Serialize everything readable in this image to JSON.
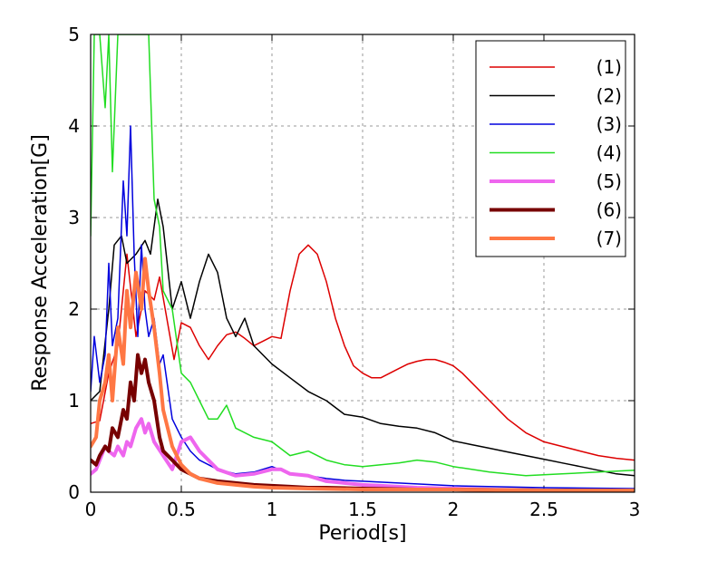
{
  "chart_data": {
    "type": "line",
    "title": "",
    "xlabel": "Period[s]",
    "ylabel": "Response Acceleration[G]",
    "xlim": [
      0,
      3
    ],
    "ylim": [
      0,
      5
    ],
    "grid": true,
    "legend_position": "top-right",
    "x_ticks": [
      0,
      0.5,
      1,
      1.5,
      2,
      2.5,
      3
    ],
    "x_tick_labels": [
      "0",
      "0.5",
      "1",
      "1.5",
      "2",
      "2.5",
      "3"
    ],
    "y_ticks": [
      0,
      1,
      2,
      3,
      4,
      5
    ],
    "y_tick_labels": [
      "0",
      "1",
      "2",
      "3",
      "4",
      "5"
    ],
    "series": [
      {
        "name": "(1)",
        "color": "#dd0000",
        "width": 1.5,
        "x": [
          0,
          0.05,
          0.1,
          0.15,
          0.2,
          0.25,
          0.3,
          0.35,
          0.38,
          0.42,
          0.46,
          0.5,
          0.55,
          0.6,
          0.65,
          0.7,
          0.75,
          0.8,
          0.85,
          0.9,
          0.95,
          1.0,
          1.05,
          1.1,
          1.15,
          1.2,
          1.25,
          1.3,
          1.35,
          1.4,
          1.45,
          1.5,
          1.55,
          1.6,
          1.65,
          1.7,
          1.75,
          1.8,
          1.85,
          1.9,
          1.95,
          2.0,
          2.05,
          2.1,
          2.2,
          2.3,
          2.4,
          2.5,
          2.6,
          2.7,
          2.8,
          2.9,
          3.0
        ],
        "y": [
          0.75,
          0.78,
          1.3,
          1.6,
          2.6,
          1.7,
          2.2,
          2.1,
          2.35,
          1.9,
          1.45,
          1.85,
          1.8,
          1.6,
          1.45,
          1.6,
          1.72,
          1.75,
          1.68,
          1.6,
          1.65,
          1.7,
          1.68,
          2.2,
          2.6,
          2.7,
          2.6,
          2.3,
          1.9,
          1.6,
          1.38,
          1.3,
          1.25,
          1.25,
          1.3,
          1.35,
          1.4,
          1.43,
          1.45,
          1.45,
          1.42,
          1.38,
          1.3,
          1.2,
          1.0,
          0.8,
          0.65,
          0.55,
          0.5,
          0.45,
          0.4,
          0.37,
          0.35
        ]
      },
      {
        "name": "(2)",
        "color": "#000000",
        "width": 1.5,
        "x": [
          0,
          0.05,
          0.1,
          0.13,
          0.17,
          0.2,
          0.25,
          0.3,
          0.33,
          0.37,
          0.4,
          0.45,
          0.5,
          0.55,
          0.6,
          0.65,
          0.7,
          0.75,
          0.8,
          0.85,
          0.9,
          0.95,
          1.0,
          1.1,
          1.2,
          1.3,
          1.4,
          1.5,
          1.6,
          1.7,
          1.8,
          1.9,
          2.0,
          2.1,
          2.2,
          2.3,
          2.4,
          2.5,
          2.6,
          2.7,
          2.8,
          2.9,
          3.0
        ],
        "y": [
          1.0,
          1.1,
          2.0,
          2.7,
          2.8,
          2.5,
          2.6,
          2.75,
          2.6,
          3.2,
          2.9,
          2.0,
          2.3,
          1.9,
          2.3,
          2.6,
          2.4,
          1.9,
          1.7,
          1.9,
          1.6,
          1.5,
          1.4,
          1.25,
          1.1,
          1.0,
          0.85,
          0.82,
          0.75,
          0.72,
          0.7,
          0.65,
          0.56,
          0.52,
          0.48,
          0.44,
          0.4,
          0.36,
          0.32,
          0.28,
          0.24,
          0.2,
          0.18
        ]
      },
      {
        "name": "(3)",
        "color": "#0000dd",
        "width": 1.5,
        "x": [
          0,
          0.02,
          0.05,
          0.08,
          0.1,
          0.12,
          0.15,
          0.18,
          0.2,
          0.22,
          0.24,
          0.26,
          0.28,
          0.3,
          0.32,
          0.35,
          0.38,
          0.4,
          0.45,
          0.5,
          0.55,
          0.6,
          0.7,
          0.8,
          0.9,
          1.0,
          1.1,
          1.2,
          1.3,
          1.4,
          1.5,
          1.7,
          2.0,
          2.5,
          3.0
        ],
        "y": [
          1.1,
          1.7,
          1.2,
          1.5,
          2.5,
          1.6,
          1.9,
          3.4,
          2.8,
          4.0,
          2.6,
          1.7,
          2.7,
          2.0,
          1.7,
          1.9,
          1.4,
          1.5,
          0.8,
          0.6,
          0.45,
          0.35,
          0.25,
          0.2,
          0.22,
          0.28,
          0.2,
          0.18,
          0.15,
          0.13,
          0.12,
          0.1,
          0.07,
          0.05,
          0.04
        ]
      },
      {
        "name": "(4)",
        "color": "#22dd22",
        "width": 1.5,
        "x": [
          0,
          0.02,
          0.05,
          0.08,
          0.1,
          0.12,
          0.15,
          0.18,
          0.2,
          0.22,
          0.25,
          0.28,
          0.32,
          0.35,
          0.38,
          0.4,
          0.45,
          0.5,
          0.55,
          0.6,
          0.65,
          0.7,
          0.75,
          0.8,
          0.9,
          1.0,
          1.1,
          1.2,
          1.3,
          1.4,
          1.5,
          1.6,
          1.7,
          1.8,
          1.9,
          2.0,
          2.2,
          2.4,
          2.6,
          2.8,
          3.0
        ],
        "y": [
          2.8,
          5.0,
          5.0,
          4.2,
          5.0,
          3.5,
          5.0,
          5.0,
          5.0,
          5.0,
          5.0,
          5.0,
          5.0,
          3.2,
          2.9,
          2.2,
          2.0,
          1.3,
          1.2,
          1.0,
          0.8,
          0.8,
          0.95,
          0.7,
          0.6,
          0.55,
          0.4,
          0.45,
          0.35,
          0.3,
          0.28,
          0.3,
          0.32,
          0.35,
          0.33,
          0.28,
          0.22,
          0.18,
          0.2,
          0.22,
          0.24
        ]
      },
      {
        "name": "(5)",
        "color": "#ee66ee",
        "width": 4,
        "x": [
          0,
          0.03,
          0.05,
          0.08,
          0.1,
          0.13,
          0.15,
          0.18,
          0.2,
          0.22,
          0.25,
          0.28,
          0.3,
          0.32,
          0.35,
          0.4,
          0.45,
          0.5,
          0.55,
          0.6,
          0.7,
          0.8,
          0.9,
          1.0,
          1.05,
          1.1,
          1.2,
          1.3,
          1.4,
          1.5,
          1.6,
          1.8,
          2.0,
          2.2,
          2.5,
          3.0
        ],
        "y": [
          0.2,
          0.25,
          0.35,
          0.5,
          0.45,
          0.4,
          0.5,
          0.4,
          0.55,
          0.5,
          0.7,
          0.8,
          0.65,
          0.75,
          0.55,
          0.4,
          0.25,
          0.55,
          0.6,
          0.45,
          0.25,
          0.18,
          0.2,
          0.25,
          0.25,
          0.2,
          0.18,
          0.12,
          0.1,
          0.08,
          0.07,
          0.05,
          0.04,
          0.03,
          0.02,
          0.02
        ]
      },
      {
        "name": "(6)",
        "color": "#770000",
        "width": 4,
        "x": [
          0,
          0.03,
          0.05,
          0.08,
          0.1,
          0.12,
          0.15,
          0.18,
          0.2,
          0.22,
          0.24,
          0.26,
          0.28,
          0.3,
          0.32,
          0.35,
          0.38,
          0.4,
          0.45,
          0.5,
          0.55,
          0.6,
          0.7,
          0.8,
          0.9,
          1.0,
          1.1,
          1.2,
          1.3,
          1.5,
          1.8,
          2.0,
          2.5,
          3.0
        ],
        "y": [
          0.35,
          0.3,
          0.4,
          0.5,
          0.45,
          0.7,
          0.6,
          0.9,
          0.8,
          1.2,
          1.0,
          1.5,
          1.3,
          1.45,
          1.2,
          1.0,
          0.6,
          0.45,
          0.35,
          0.25,
          0.2,
          0.15,
          0.12,
          0.1,
          0.08,
          0.07,
          0.06,
          0.05,
          0.05,
          0.04,
          0.03,
          0.03,
          0.02,
          0.02
        ]
      },
      {
        "name": "(7)",
        "color": "#ff7744",
        "width": 4,
        "x": [
          0,
          0.03,
          0.05,
          0.08,
          0.1,
          0.12,
          0.15,
          0.18,
          0.2,
          0.22,
          0.25,
          0.28,
          0.3,
          0.32,
          0.35,
          0.38,
          0.4,
          0.45,
          0.5,
          0.55,
          0.6,
          0.7,
          0.8,
          0.9,
          1.0,
          1.2,
          1.5,
          2.0,
          2.5,
          3.0
        ],
        "y": [
          0.5,
          0.6,
          1.0,
          1.2,
          1.5,
          1.0,
          1.8,
          1.4,
          2.2,
          1.8,
          2.4,
          2.0,
          2.55,
          2.2,
          1.8,
          1.3,
          0.9,
          0.5,
          0.3,
          0.2,
          0.15,
          0.1,
          0.08,
          0.06,
          0.05,
          0.04,
          0.03,
          0.03,
          0.02,
          0.02
        ]
      }
    ]
  }
}
